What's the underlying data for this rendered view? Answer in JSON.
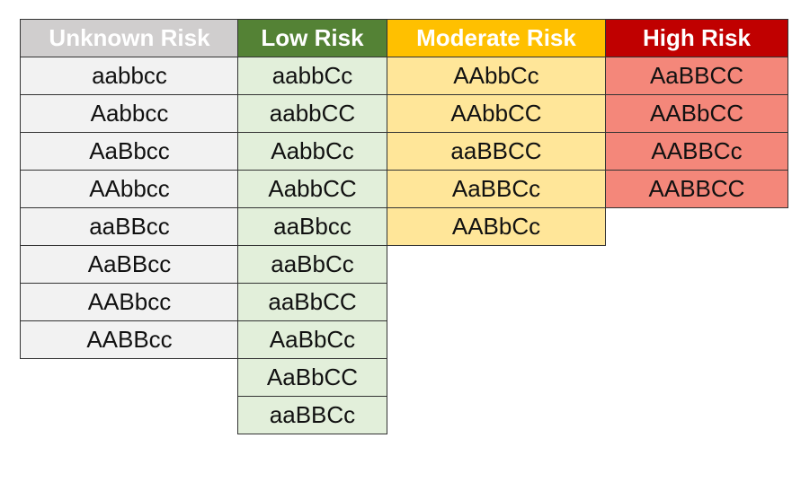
{
  "columns": [
    {
      "id": "unknown",
      "header": "Unknown Risk",
      "header_color": "#d0cece",
      "cell_color": "#f2f2f2",
      "values": [
        "aabbcc",
        "Aabbcc",
        "AaBbcc",
        "AAbbcc",
        "aaBBcc",
        "AaBBcc",
        "AABbcc",
        "AABBcc"
      ]
    },
    {
      "id": "low",
      "header": "Low Risk",
      "header_color": "#548235",
      "cell_color": "#e2efda",
      "values": [
        "aabbCc",
        "aabbCC",
        "AabbCc",
        "AabbCC",
        "aaBbcc",
        "aaBbCc",
        "aaBbCC",
        "AaBbCc",
        "AaBbCC",
        "aaBBCc"
      ]
    },
    {
      "id": "moderate",
      "header": "Moderate Risk",
      "header_color": "#ffc000",
      "cell_color": "#ffe699",
      "values": [
        "AAbbCc",
        "AAbbCC",
        "aaBBCC",
        "AaBBCc",
        "AABbCc"
      ]
    },
    {
      "id": "high",
      "header": "High Risk",
      "header_color": "#c00000",
      "cell_color": "#f4877a",
      "values": [
        "AaBBCC",
        "AABbCC",
        "AABBCc",
        "AABBCC"
      ]
    }
  ]
}
